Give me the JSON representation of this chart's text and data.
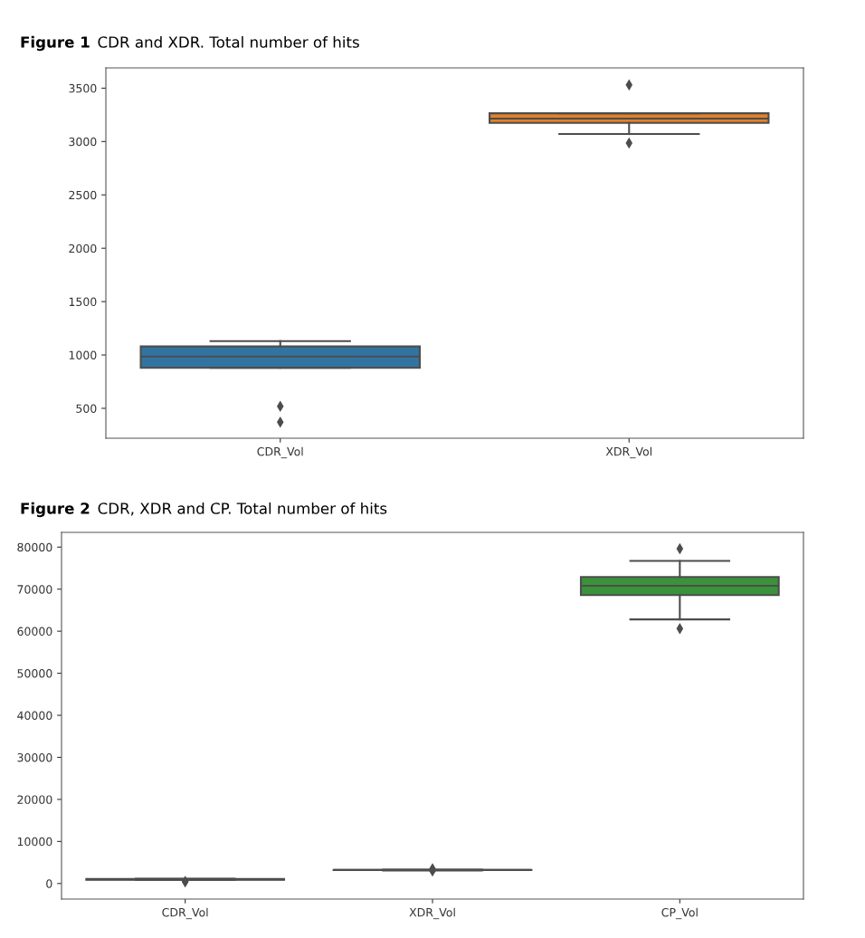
{
  "chart_data": [
    {
      "type": "box",
      "title": "Figure 1",
      "subtitle": "CDR and XDR. Total number of hits",
      "categories": [
        "CDR_Vol",
        "XDR_Vol"
      ],
      "colors": [
        "#3274a1",
        "#e1812c"
      ],
      "marker": "diamond",
      "boxes": [
        {
          "low": 880,
          "q1": 880,
          "median": 985,
          "q3": 1080,
          "high": 1130,
          "outliers": [
            520,
            370
          ]
        },
        {
          "low": 3070,
          "q1": 3175,
          "median": 3215,
          "q3": 3265,
          "high": 3265,
          "outliers": [
            3530,
            2985
          ]
        }
      ],
      "ylim": [
        220,
        3690
      ],
      "yticks": [
        500,
        1000,
        1500,
        2000,
        2500,
        3000,
        3500
      ],
      "grid": false
    },
    {
      "type": "box",
      "title": "Figure 2",
      "subtitle": "CDR, XDR and CP. Total number of hits",
      "categories": [
        "CDR_Vol",
        "XDR_Vol",
        "CP_Vol"
      ],
      "colors": [
        "#3274a1",
        "#e1812c",
        "#3a923a"
      ],
      "marker": "diamond",
      "boxes": [
        {
          "low": 880,
          "q1": 880,
          "median": 985,
          "q3": 1080,
          "high": 1130,
          "outliers": [
            520,
            370
          ]
        },
        {
          "low": 3070,
          "q1": 3175,
          "median": 3215,
          "q3": 3260,
          "high": 3270,
          "outliers": [
            3530,
            2985
          ]
        },
        {
          "low": 62800,
          "q1": 68600,
          "median": 70800,
          "q3": 72900,
          "high": 76700,
          "outliers": [
            79600,
            60600
          ]
        }
      ],
      "ylim": [
        -3700,
        83500
      ],
      "yticks": [
        0,
        10000,
        20000,
        30000,
        40000,
        50000,
        60000,
        70000,
        80000
      ],
      "grid": false
    }
  ]
}
